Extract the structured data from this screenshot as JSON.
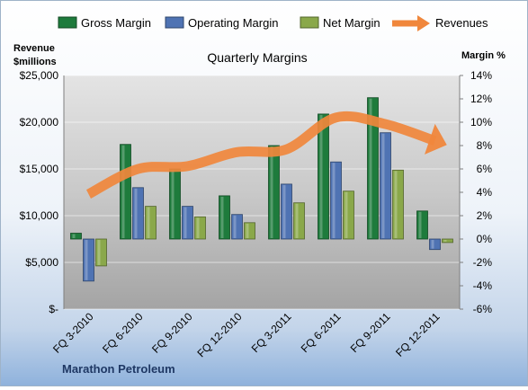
{
  "chart_data": {
    "type": "bar",
    "title": "Quarterly Margins",
    "footer": "Marathon Petroleum",
    "left_axis_title": [
      "Revenue",
      "$millions"
    ],
    "right_axis_title": "Margin %",
    "categories": [
      "FQ 3-2010",
      "FQ 6-2010",
      "FQ 9-2010",
      "FQ 12-2010",
      "FQ 3-2011",
      "FQ 6-2011",
      "FQ 9-2011",
      "FQ 12-2011"
    ],
    "series": [
      {
        "name": "Gross Margin",
        "axis": "right",
        "color": "#1e7b3c",
        "values": [
          0.5,
          8.1,
          6.0,
          3.7,
          8.0,
          10.7,
          12.1,
          2.4
        ]
      },
      {
        "name": "Operating Margin",
        "axis": "right",
        "color": "#4f73b3",
        "values": [
          -3.6,
          4.4,
          2.8,
          2.1,
          4.7,
          6.6,
          9.1,
          -0.9
        ]
      },
      {
        "name": "Net Margin",
        "axis": "right",
        "color": "#8aa84a",
        "values": [
          -2.3,
          2.8,
          1.9,
          1.4,
          3.1,
          4.1,
          5.9,
          -0.3
        ]
      }
    ],
    "revenues": {
      "name": "Revenues",
      "axis": "left",
      "color": "#f0873c",
      "values": [
        12300,
        15000,
        15300,
        16800,
        17100,
        20500,
        19800,
        18000
      ]
    },
    "left_axis": {
      "min": 0,
      "max": 25000,
      "step": 5000,
      "tick_labels": [
        "$-",
        "$5,000",
        "$10,000",
        "$15,000",
        "$20,000",
        "$25,000"
      ]
    },
    "right_axis": {
      "min": -6,
      "max": 14,
      "step": 2,
      "tick_labels": [
        "-6%",
        "-4%",
        "-2%",
        "0%",
        "2%",
        "4%",
        "6%",
        "8%",
        "10%",
        "12%",
        "14%"
      ]
    },
    "grid": true,
    "legend_position": "top"
  }
}
